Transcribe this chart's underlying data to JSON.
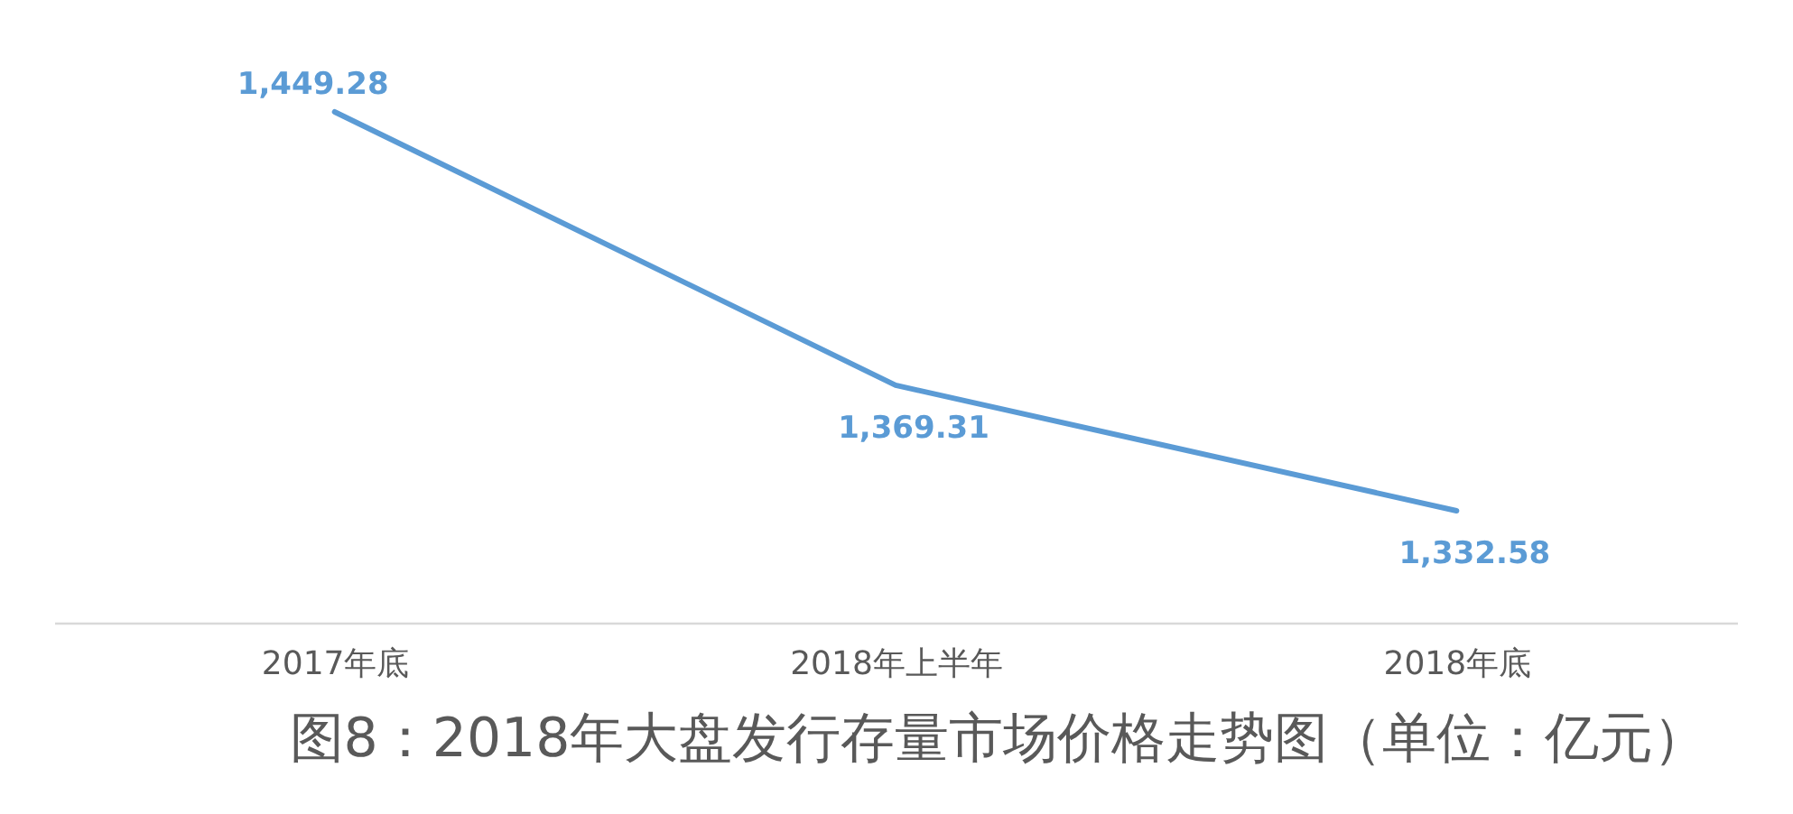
{
  "chart_data": {
    "type": "line",
    "title": "图8：2018年大盘发行存量市场价格走势图（单位：亿元）",
    "categories": [
      "2017年底",
      "2018年上半年",
      "2018年底"
    ],
    "series": [
      {
        "color": "#5b9bd5",
        "values": [
          1449.28,
          1369.31,
          1332.58
        ],
        "value_labels": [
          "1,449.28",
          "1,369.31",
          "1,332.58"
        ]
      }
    ],
    "tick_labels": "x"
  }
}
